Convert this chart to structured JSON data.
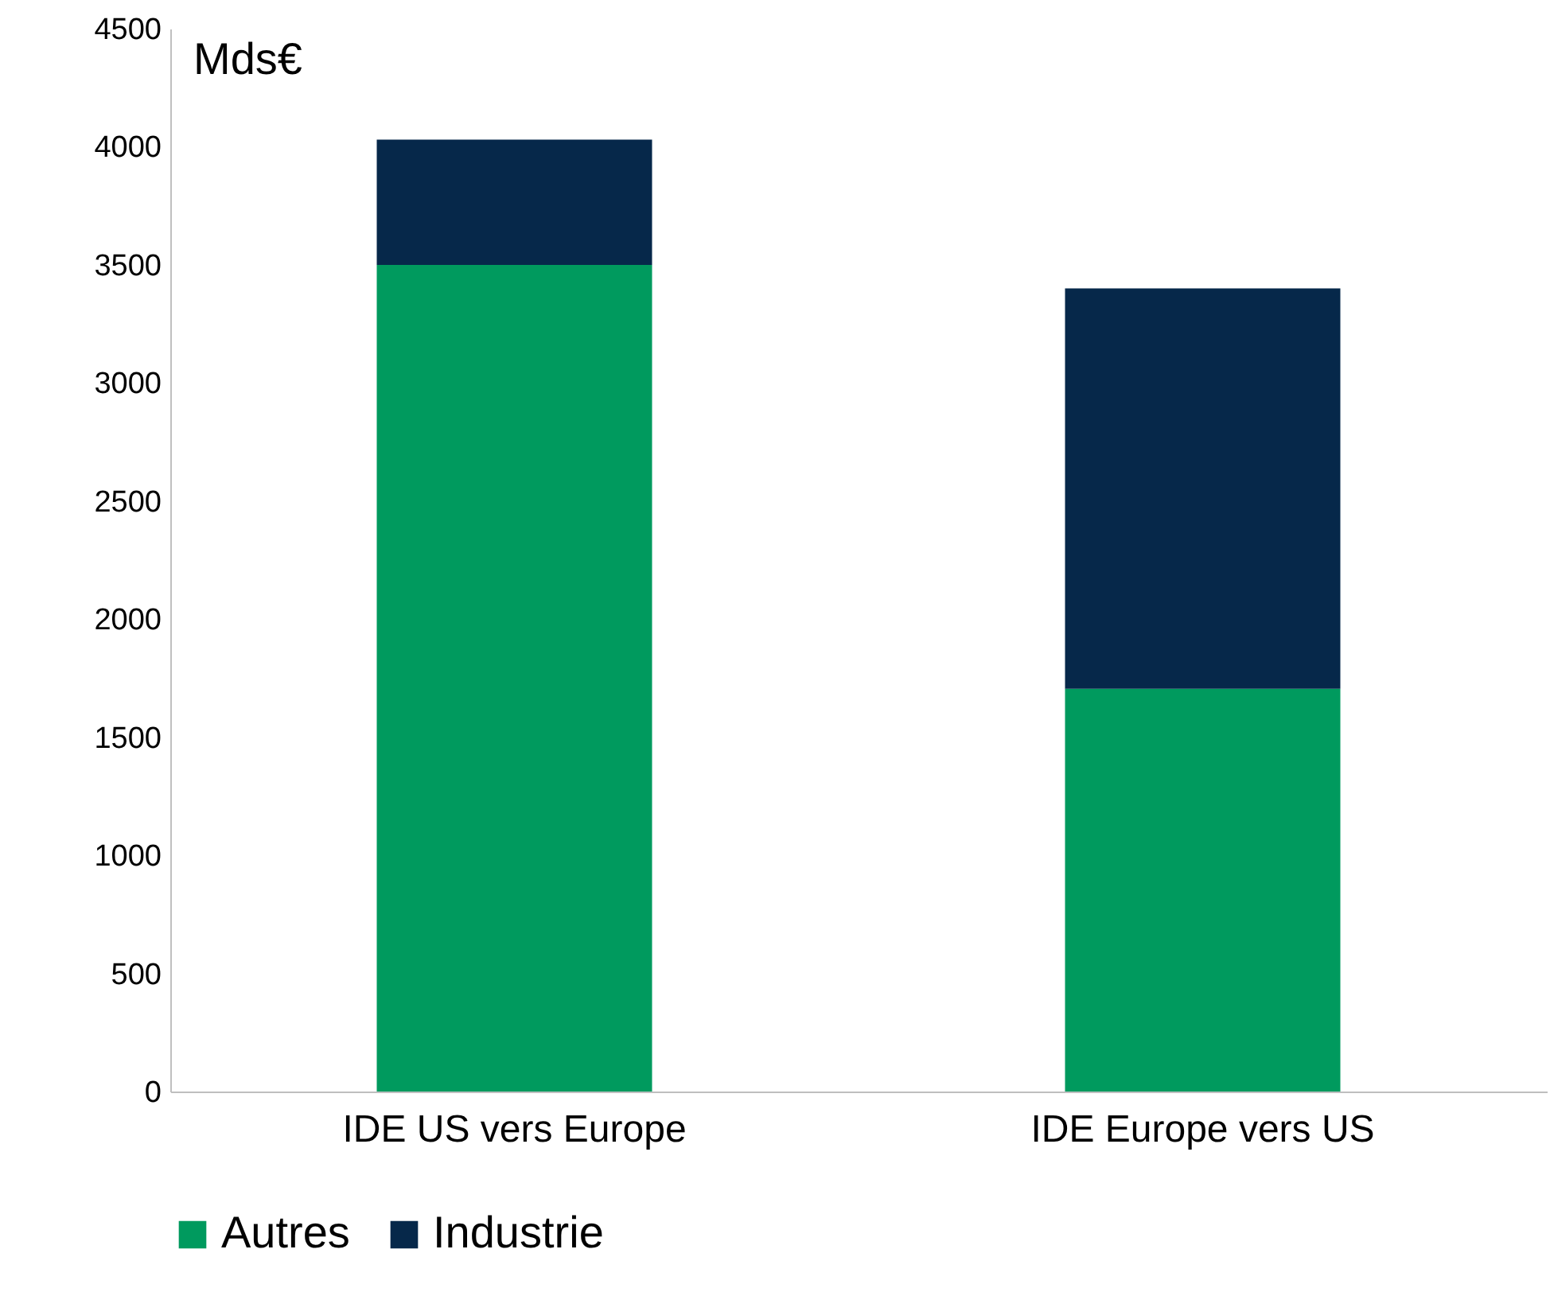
{
  "chart_data": {
    "type": "bar",
    "stacked": true,
    "ylabel": "Mds€",
    "categories": [
      "IDE US  vers Europe",
      "IDE Europe vers US"
    ],
    "series": [
      {
        "name": "Autres",
        "color": "#009a5e",
        "values": [
          3500,
          1705
        ]
      },
      {
        "name": "Industrie",
        "color": "#06284a",
        "values": [
          530,
          1695
        ]
      }
    ],
    "ylim": [
      0,
      4500
    ],
    "yticks": [
      0,
      500,
      1000,
      1500,
      2000,
      2500,
      3000,
      3500,
      4000,
      4500
    ],
    "grid": false,
    "legend": "bottom"
  }
}
